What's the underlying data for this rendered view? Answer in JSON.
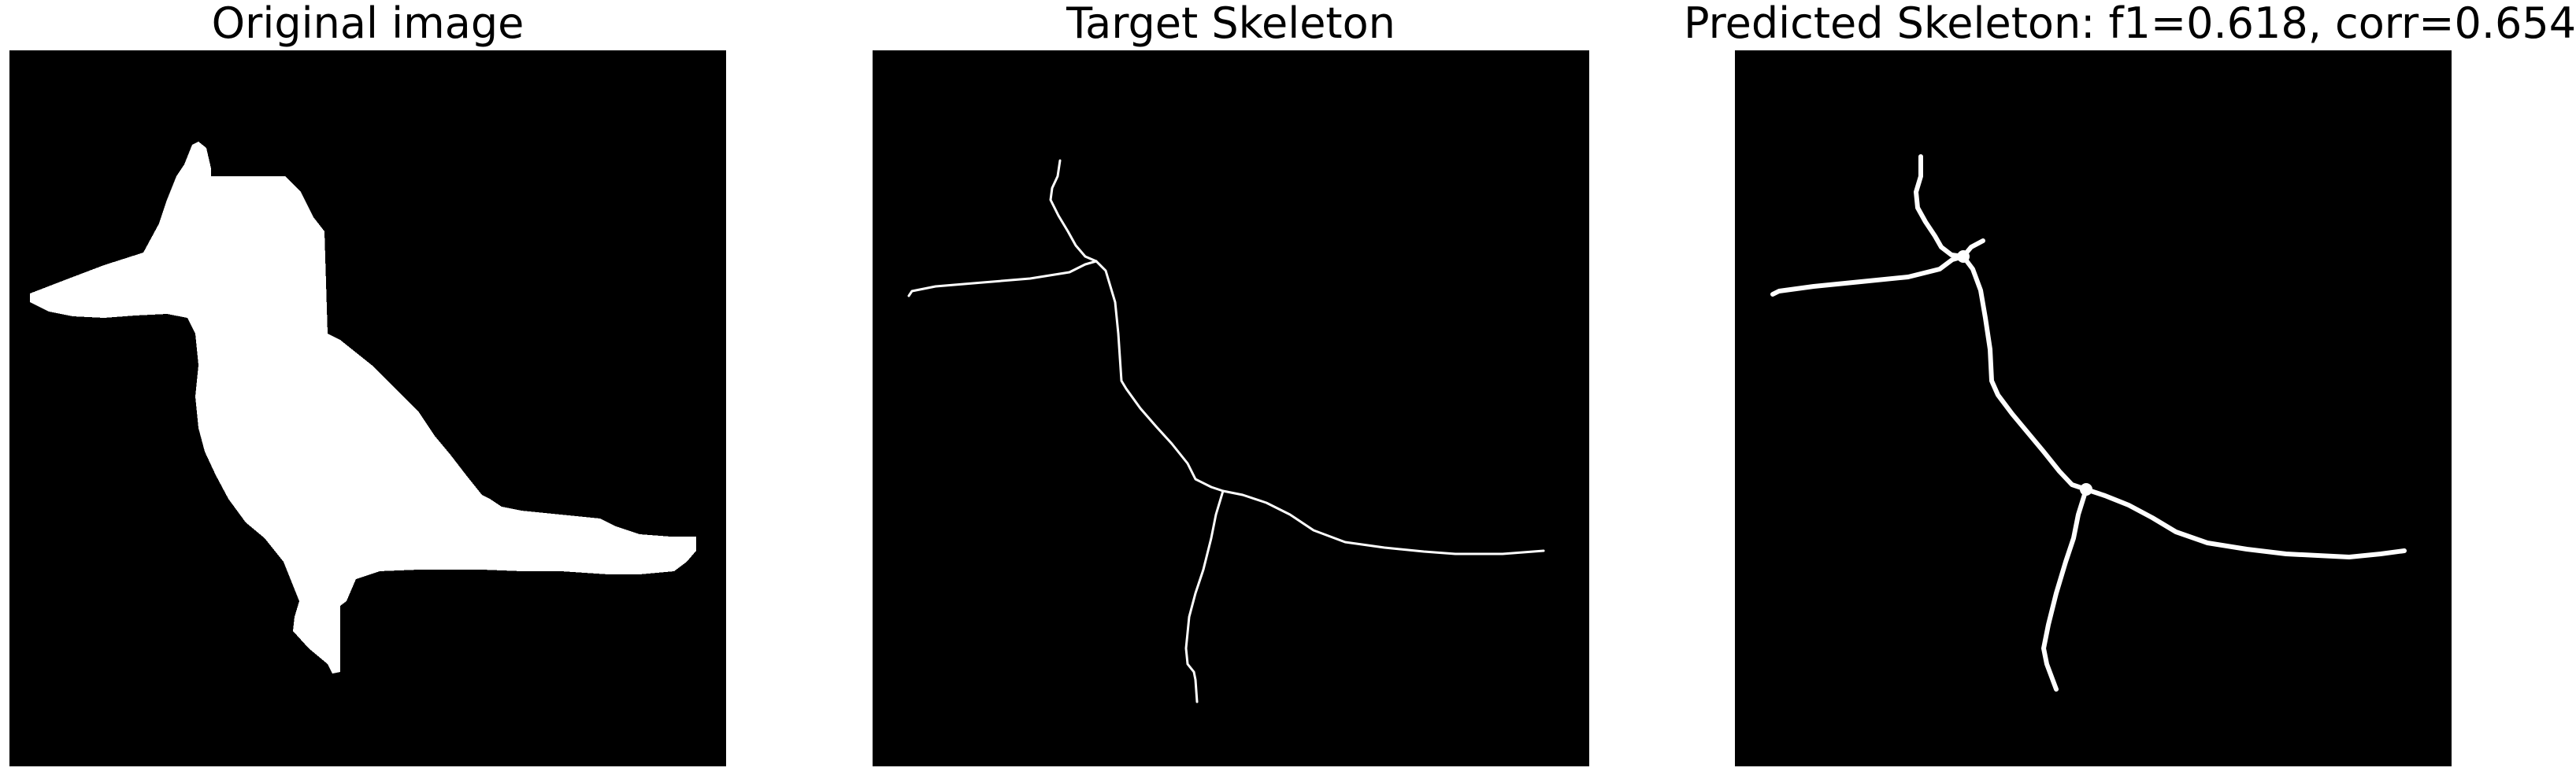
{
  "panels": [
    {
      "title": "Original image"
    },
    {
      "title": "Target Skeleton"
    },
    {
      "title": "Predicted Skeleton: f1=0.618, corr=0.654"
    }
  ],
  "colors": {
    "background": "#000000",
    "foreground": "#ffffff",
    "title_text": "#000000"
  }
}
